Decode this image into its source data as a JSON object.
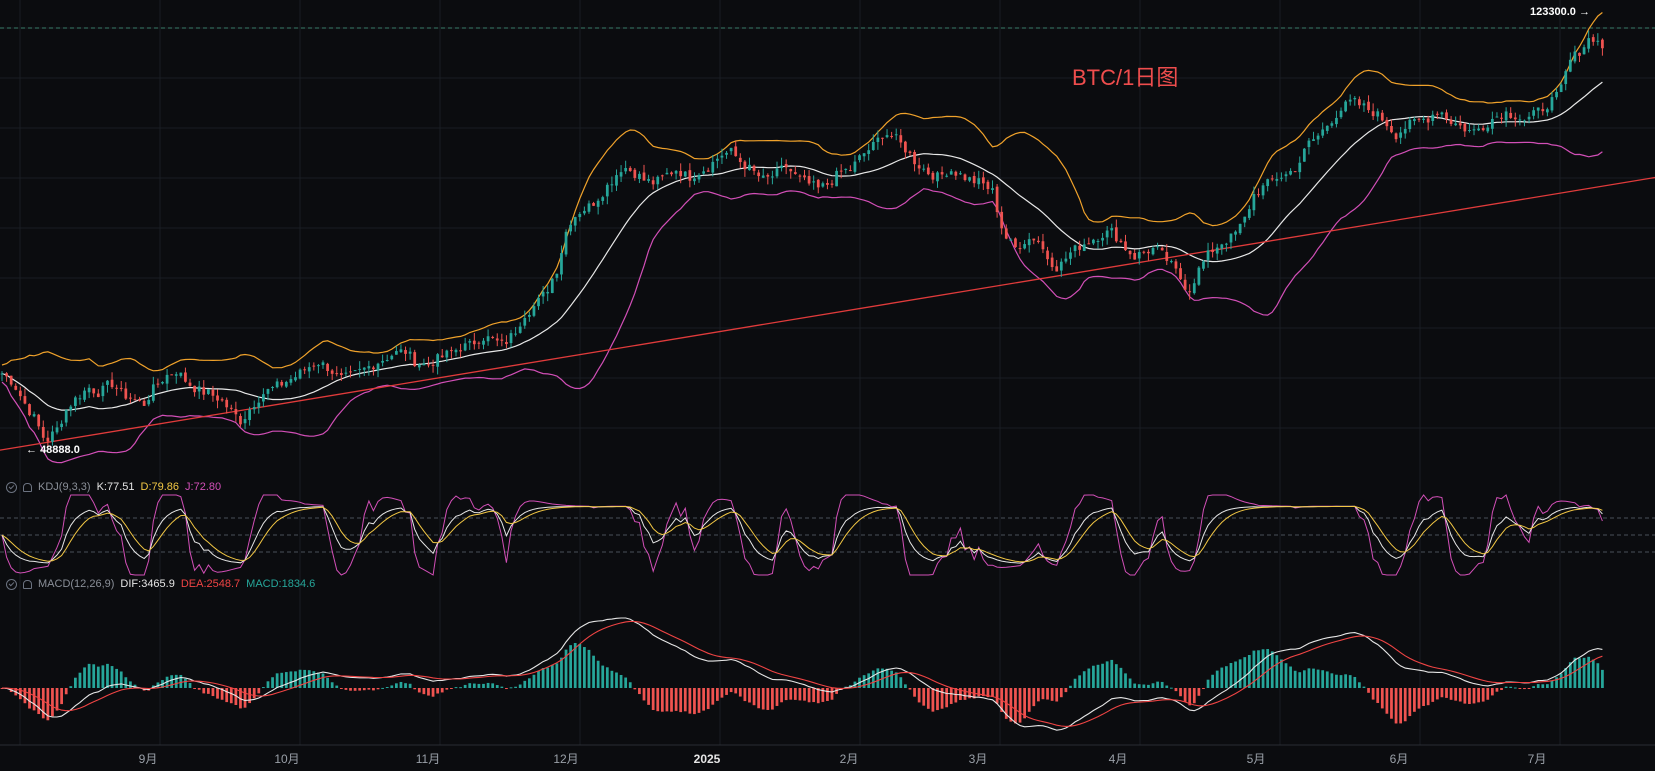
{
  "chart_title": "BTC/1日图",
  "price_labels": {
    "high": "123300.0",
    "low": "48888.0"
  },
  "kdj": {
    "name": "KDJ(9,3,3)",
    "k": "K:77.51",
    "d": "D:79.86",
    "j": "J:72.80"
  },
  "macd": {
    "name": "MACD(12,26,9)",
    "dif": "DIF:3465.9",
    "dea": "DEA:2548.7",
    "macd": "MACD:1834.6"
  },
  "colors": {
    "up": "#26a69a",
    "down": "#ef5350",
    "bb_upper": "#f0a22b",
    "bb_mid": "#e8e8e8",
    "bb_lower": "#d24fb7",
    "trend": "#e03b3b",
    "k": "#e6e6e6",
    "d": "#f2c744",
    "j": "#d24fb7",
    "dif": "#e6e6e6",
    "dea": "#ef4444"
  },
  "chart_data": {
    "type": "candlestick",
    "x_ticks": [
      "9月",
      "10月",
      "11月",
      "12月",
      "2025",
      "2月",
      "3月",
      "4月",
      "5月",
      "6月",
      "7月"
    ],
    "price_range": [
      45000,
      126000
    ],
    "trend_line": [
      [
        0,
        48500
      ],
      [
        1.0,
        96500
      ]
    ],
    "close_path": [
      62000,
      60500,
      57000,
      54000,
      50000,
      52000,
      56000,
      58000,
      59500,
      58500,
      60500,
      58500,
      57500,
      56500,
      59500,
      61500,
      62500,
      60500,
      59000,
      58500,
      57500,
      55500,
      53500,
      56500,
      58500,
      59500,
      60500,
      61500,
      63000,
      64000,
      63000,
      61000,
      61500,
      62500,
      63500,
      64500,
      65500,
      66000,
      64000,
      63500,
      64500,
      65500,
      66500,
      67000,
      68500,
      68000,
      67000,
      69000,
      72500,
      74000,
      76500,
      80500,
      88500,
      90500,
      91500,
      93500,
      96000,
      98500,
      97500,
      96000,
      95500,
      97000,
      98000,
      96500,
      97500,
      98500,
      100500,
      101000,
      99000,
      97500,
      96000,
      97000,
      98500,
      96500,
      95500,
      94500,
      95500,
      97500,
      98000,
      100500,
      102000,
      104500,
      103500,
      101500,
      99000,
      97500,
      96500,
      98000,
      97000,
      96000,
      95500,
      94000,
      86500,
      84000,
      85500,
      86000,
      82500,
      80500,
      83000,
      84500,
      85500,
      86500,
      87000,
      84500,
      82500,
      83500,
      84000,
      82000,
      79500,
      76500,
      80500,
      83500,
      85000,
      86000,
      88500,
      93500,
      95000,
      96500,
      97000,
      98500,
      102500,
      104000,
      106500,
      108500,
      110000,
      109000,
      108000,
      106500,
      104000,
      105500,
      106500,
      107000,
      108500,
      106500,
      105500,
      104500,
      105500,
      107000,
      108000,
      107500,
      106500,
      108000,
      109500,
      111000,
      117000,
      119000,
      121500,
      119500
    ],
    "kdj_values": {
      "k": 77.51,
      "d": 79.86,
      "j": 72.8
    },
    "macd_values": {
      "dif": 3465.9,
      "dea": 2548.7,
      "macd": 1834.6
    }
  }
}
